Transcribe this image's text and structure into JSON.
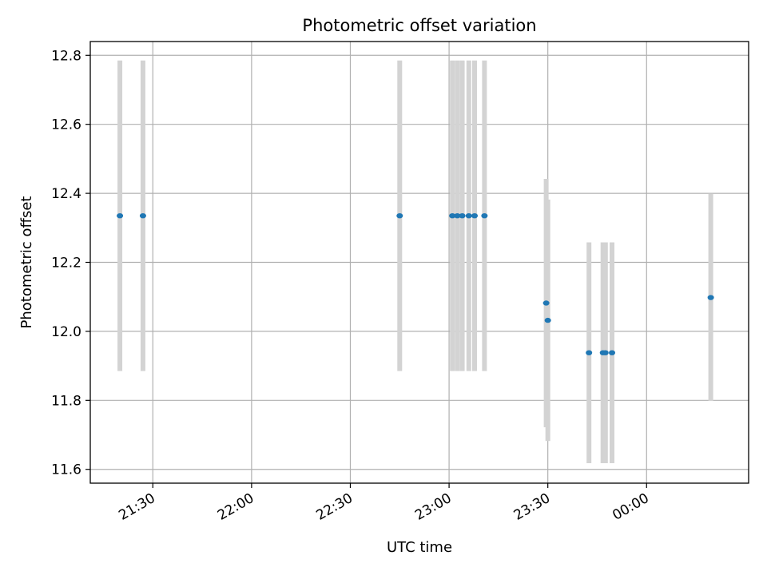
{
  "chart_data": {
    "type": "scatter",
    "title": "Photometric offset variation",
    "xlabel": "UTC time",
    "ylabel": "Photometric offset",
    "x_unit": "UTC time (HH:MM)",
    "xlim": [
      "21:11",
      "00:31"
    ],
    "ylim": [
      11.56,
      12.84
    ],
    "grid": true,
    "colors": {
      "point": "#1f77b4",
      "errorbar": "#d3d3d3",
      "grid": "#b0b0b0"
    },
    "x_ticks": [
      {
        "t": "21:30",
        "label": "21:30"
      },
      {
        "t": "22:00",
        "label": "22:00"
      },
      {
        "t": "22:30",
        "label": "22:30"
      },
      {
        "t": "23:00",
        "label": "23:00"
      },
      {
        "t": "23:30",
        "label": "23:30"
      },
      {
        "t": "00:00",
        "label": "00:00"
      }
    ],
    "y_ticks": [
      {
        "v": 11.6,
        "label": "11.6"
      },
      {
        "v": 11.8,
        "label": "11.8"
      },
      {
        "v": 12.0,
        "label": "12.0"
      },
      {
        "v": 12.2,
        "label": "12.2"
      },
      {
        "v": 12.4,
        "label": "12.4"
      },
      {
        "v": 12.6,
        "label": "12.6"
      },
      {
        "v": 12.8,
        "label": "12.8"
      }
    ],
    "series": [
      {
        "points": [
          {
            "x": "21:20:00",
            "y": 12.335,
            "yerr": 0.45
          },
          {
            "x": "21:27:00",
            "y": 12.335,
            "yerr": 0.45
          },
          {
            "x": "22:45:00",
            "y": 12.335,
            "yerr": 0.45
          },
          {
            "x": "23:01:00",
            "y": 12.335,
            "yerr": 0.45
          },
          {
            "x": "23:02:30",
            "y": 12.335,
            "yerr": 0.45
          },
          {
            "x": "23:04:00",
            "y": 12.335,
            "yerr": 0.45
          },
          {
            "x": "23:06:00",
            "y": 12.335,
            "yerr": 0.45
          },
          {
            "x": "23:07:45",
            "y": 12.335,
            "yerr": 0.45
          },
          {
            "x": "23:10:45",
            "y": 12.335,
            "yerr": 0.45
          },
          {
            "x": "23:29:30",
            "y": 12.082,
            "yerr": 0.36
          },
          {
            "x": "23:30:00",
            "y": 12.032,
            "yerr": 0.35
          },
          {
            "x": "23:42:30",
            "y": 11.938,
            "yerr": 0.32
          },
          {
            "x": "23:46:45",
            "y": 11.938,
            "yerr": 0.32
          },
          {
            "x": "23:47:30",
            "y": 11.938,
            "yerr": 0.32
          },
          {
            "x": "23:49:30",
            "y": 11.938,
            "yerr": 0.32
          },
          {
            "x": "00:19:30",
            "y": 12.098,
            "yerr": 0.3
          }
        ]
      }
    ]
  }
}
